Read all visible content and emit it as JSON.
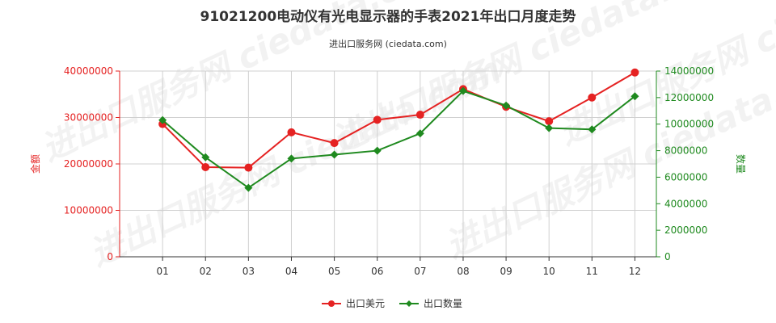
{
  "chart_data": {
    "type": "line",
    "title": "91021200电动仪有光电显示器的手表2021年出口月度走势",
    "subtitle": "进出口服务网 (ciedata.com)",
    "watermark": "进出口服务网 ciedata.com",
    "categories": [
      "01",
      "02",
      "03",
      "04",
      "05",
      "06",
      "07",
      "08",
      "09",
      "10",
      "11",
      "12"
    ],
    "y_left": {
      "label": "金额",
      "ylim": [
        0,
        40000000
      ],
      "ticks": [
        "0",
        "10000000",
        "20000000",
        "30000000",
        "40000000"
      ],
      "color": "#e52222"
    },
    "y_right": {
      "label": "数量",
      "ylim": [
        0,
        14000000
      ],
      "ticks": [
        "0",
        "2000000",
        "4000000",
        "6000000",
        "8000000",
        "10000000",
        "12000000",
        "14000000"
      ],
      "color": "#1f8a1f"
    },
    "series": [
      {
        "name": "出口美元",
        "axis": "left",
        "color": "#e52222",
        "marker": "circle",
        "values": [
          28600000,
          19300000,
          19200000,
          26800000,
          24500000,
          29500000,
          30600000,
          36100000,
          32300000,
          29200000,
          34300000,
          39700000
        ]
      },
      {
        "name": "出口数量",
        "axis": "right",
        "color": "#1f8a1f",
        "marker": "diamond",
        "values": [
          10300000,
          7500000,
          5200000,
          7400000,
          7700000,
          8000000,
          9300000,
          12500000,
          11400000,
          9700000,
          9600000,
          12100000
        ]
      }
    ],
    "grid": true,
    "legend": "bottom-center"
  }
}
